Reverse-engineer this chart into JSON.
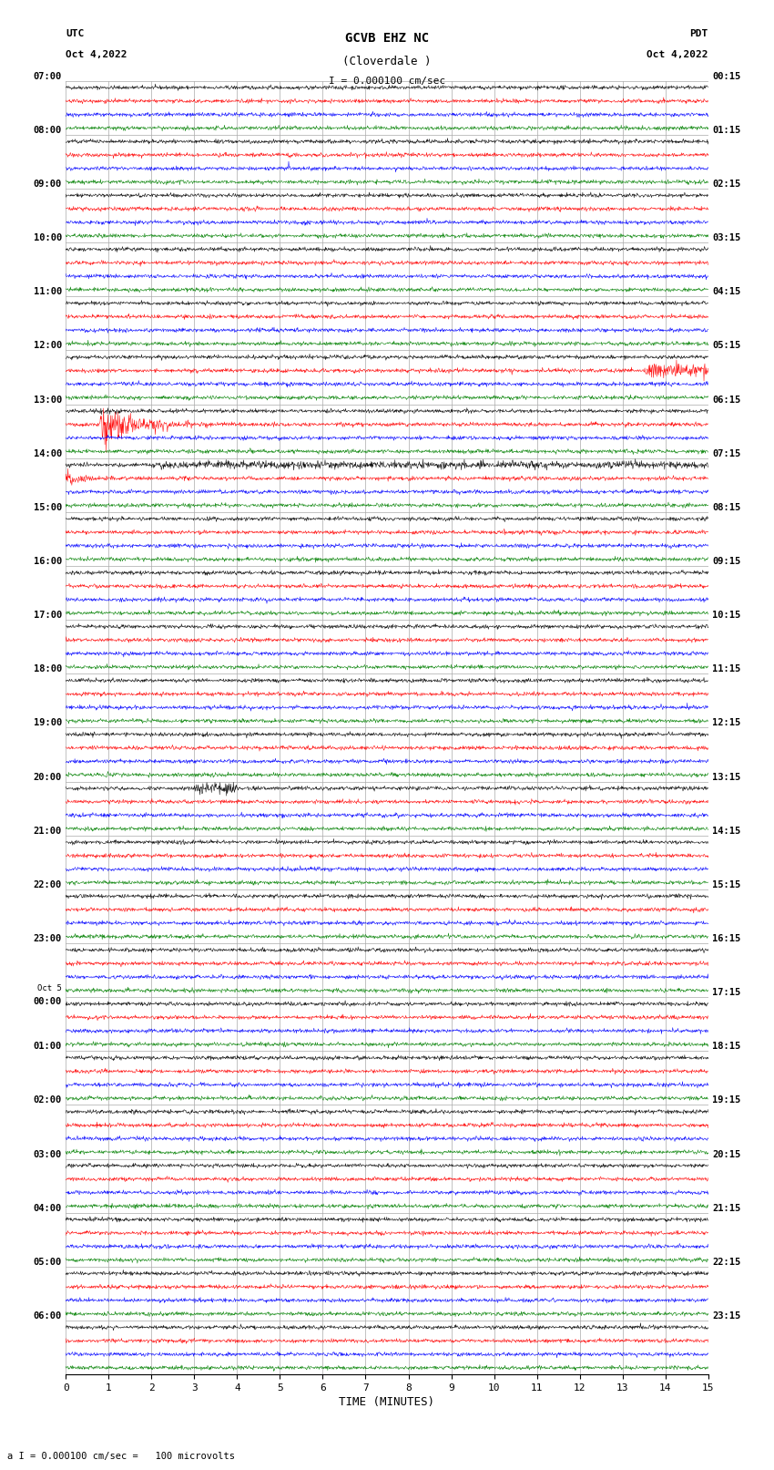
{
  "title_line1": "GCVB EHZ NC",
  "title_line2": "(Cloverdale )",
  "scale_label": "I = 0.000100 cm/sec",
  "left_header": "UTC\nOct 4,2022",
  "right_header": "PDT\nOct 4,2022",
  "bottom_label": "TIME (MINUTES)",
  "footnote": "a I = 0.000100 cm/sec =   100 microvolts",
  "num_rows": 24,
  "minutes_per_row": 15,
  "traces_per_row": 4,
  "trace_colors": [
    "black",
    "red",
    "blue",
    "green"
  ],
  "background_color": "#ffffff",
  "grid_color": "#aaaaaa",
  "row_label_utc": [
    "07:00",
    "08:00",
    "09:00",
    "10:00",
    "11:00",
    "12:00",
    "13:00",
    "14:00",
    "15:00",
    "16:00",
    "17:00",
    "18:00",
    "19:00",
    "20:00",
    "21:00",
    "22:00",
    "23:00",
    "Oct 5\n00:00",
    "01:00",
    "02:00",
    "03:00",
    "04:00",
    "05:00",
    "06:00"
  ],
  "row_label_pdt": [
    "00:15",
    "01:15",
    "02:15",
    "03:15",
    "04:15",
    "05:15",
    "06:15",
    "07:15",
    "08:15",
    "09:15",
    "10:15",
    "11:15",
    "12:15",
    "13:15",
    "14:15",
    "15:15",
    "16:15",
    "17:15",
    "18:15",
    "19:15",
    "20:15",
    "21:15",
    "22:15",
    "23:15"
  ],
  "noise_amplitude": 0.07,
  "fig_width": 8.5,
  "fig_height": 16.13,
  "dpi": 100
}
